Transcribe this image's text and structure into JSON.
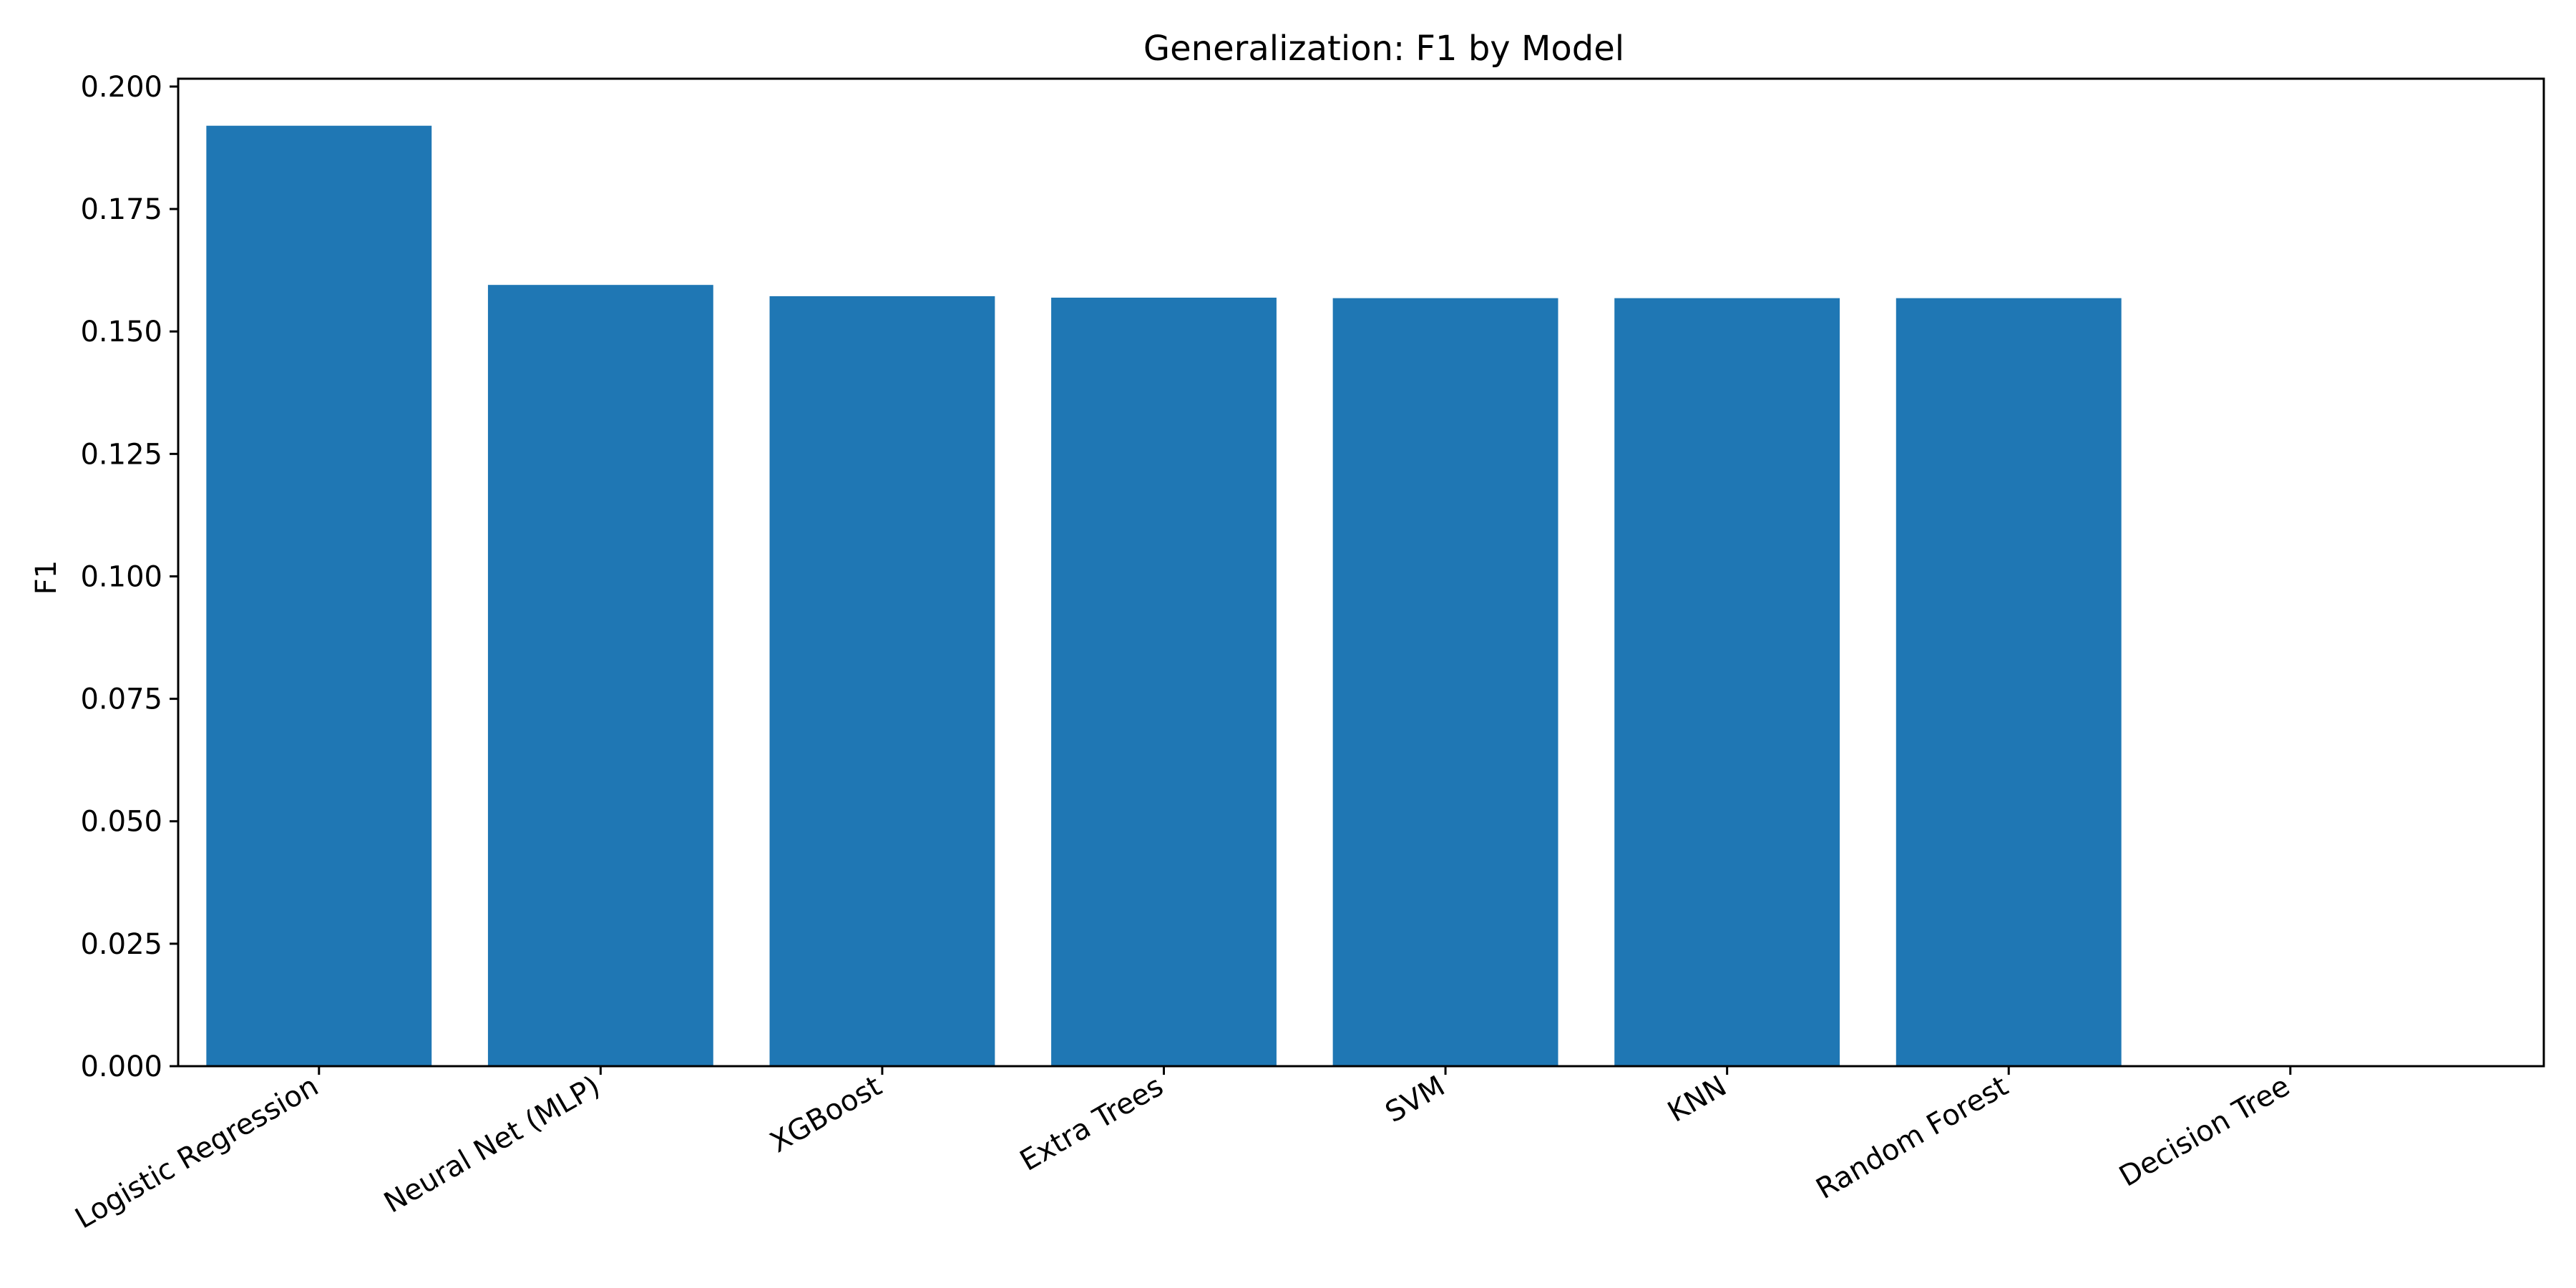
{
  "chart_data": {
    "type": "bar",
    "title": "Generalization: F1 by Model",
    "xlabel": "",
    "ylabel": "F1",
    "categories": [
      "Logistic Regression",
      "Neural Net (MLP)",
      "XGBoost",
      "Extra Trees",
      "SVM",
      "KNN",
      "Random Forest",
      "Decision Tree"
    ],
    "values": [
      0.192,
      0.1595,
      0.1572,
      0.1569,
      0.1568,
      0.1568,
      0.1568,
      0.0
    ],
    "ylim": [
      0,
      0.2016
    ],
    "yticks": [
      "0.000",
      "0.025",
      "0.050",
      "0.075",
      "0.100",
      "0.125",
      "0.150",
      "0.175",
      "0.200"
    ],
    "grid": false,
    "bar_color": "#1f77b4"
  }
}
